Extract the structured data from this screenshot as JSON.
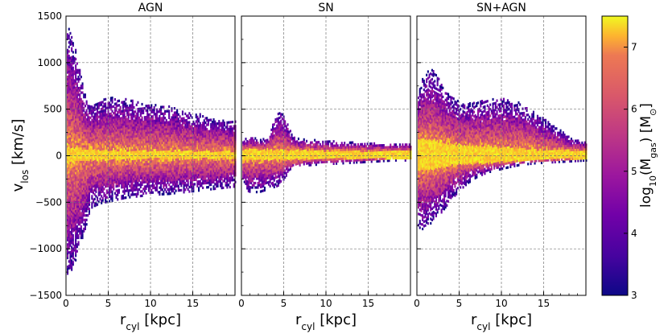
{
  "chart_data": {
    "type": "heatmap",
    "panels": [
      {
        "title": "AGN",
        "xlabel": "r_cyl [kpc]",
        "xlim": [
          0,
          20
        ],
        "ylim": [
          -1500,
          1500
        ],
        "envelope": {
          "r": [
            0.2,
            0.5,
            1,
            1.5,
            2,
            2.5,
            3,
            4,
            5,
            6,
            7,
            8,
            10,
            12,
            14,
            16,
            18,
            20
          ],
          "upper": [
            1380,
            1300,
            1150,
            950,
            720,
            560,
            520,
            580,
            620,
            620,
            600,
            580,
            540,
            520,
            470,
            430,
            380,
            360
          ],
          "lower": [
            -1300,
            -1250,
            -1150,
            -1000,
            -850,
            -700,
            -560,
            -520,
            -500,
            -480,
            -460,
            -450,
            -430,
            -420,
            -400,
            -380,
            -360,
            -340
          ],
          "core_halfwidth": [
            80,
            80,
            75,
            70,
            65,
            60,
            55,
            50,
            50,
            48,
            45,
            45,
            42,
            40,
            40,
            38,
            36,
            35
          ]
        }
      },
      {
        "title": "SN",
        "xlabel": "r_cyl [kpc]",
        "xlim": [
          0,
          20
        ],
        "ylim": [
          -1500,
          1500
        ],
        "envelope": {
          "r": [
            0.2,
            0.5,
            1,
            2,
            3,
            4,
            4.5,
            5,
            5.5,
            6,
            7,
            8,
            10,
            12,
            14,
            16,
            18,
            20
          ],
          "upper": [
            140,
            180,
            190,
            170,
            170,
            430,
            460,
            440,
            300,
            190,
            170,
            160,
            150,
            140,
            130,
            125,
            120,
            120
          ],
          "lower": [
            -300,
            -380,
            -400,
            -400,
            -370,
            -340,
            -320,
            -250,
            -190,
            -160,
            -130,
            -110,
            -100,
            -90,
            -80,
            -70,
            -60,
            -60
          ],
          "core_halfwidth": [
            60,
            60,
            60,
            55,
            55,
            50,
            50,
            50,
            50,
            50,
            45,
            45,
            40,
            40,
            40,
            40,
            40,
            40
          ]
        }
      },
      {
        "title": "SN+AGN",
        "xlabel": "r_cyl [kpc]",
        "xlim": [
          0,
          20
        ],
        "ylim": [
          -1500,
          1500
        ],
        "envelope": {
          "r": [
            0.2,
            0.5,
            1,
            1.5,
            2,
            3,
            4,
            5,
            6,
            7,
            8,
            9,
            10,
            11,
            12,
            14,
            16,
            18,
            20
          ],
          "upper": [
            700,
            800,
            880,
            920,
            900,
            750,
            650,
            560,
            560,
            580,
            590,
            600,
            600,
            590,
            560,
            450,
            320,
            190,
            130
          ],
          "lower": [
            -780,
            -800,
            -780,
            -740,
            -700,
            -600,
            -480,
            -380,
            -300,
            -240,
            -200,
            -170,
            -150,
            -130,
            -110,
            -90,
            -80,
            -70,
            -60
          ],
          "core_halfwidth": [
            160,
            170,
            170,
            160,
            150,
            130,
            110,
            100,
            95,
            90,
            85,
            80,
            75,
            70,
            65,
            55,
            50,
            45,
            40
          ]
        }
      }
    ],
    "ylabel": "v_los [km/s]",
    "yticks": [
      -1500,
      -1000,
      -500,
      0,
      500,
      1000,
      1500
    ],
    "xticks": [
      0,
      5,
      10,
      15
    ],
    "grid": true,
    "colorbar": {
      "label": "log10(M_gas) [M_sun]",
      "range": [
        3,
        7.5
      ],
      "ticks": [
        3,
        4,
        5,
        6,
        7
      ],
      "colormap": "plasma"
    }
  }
}
